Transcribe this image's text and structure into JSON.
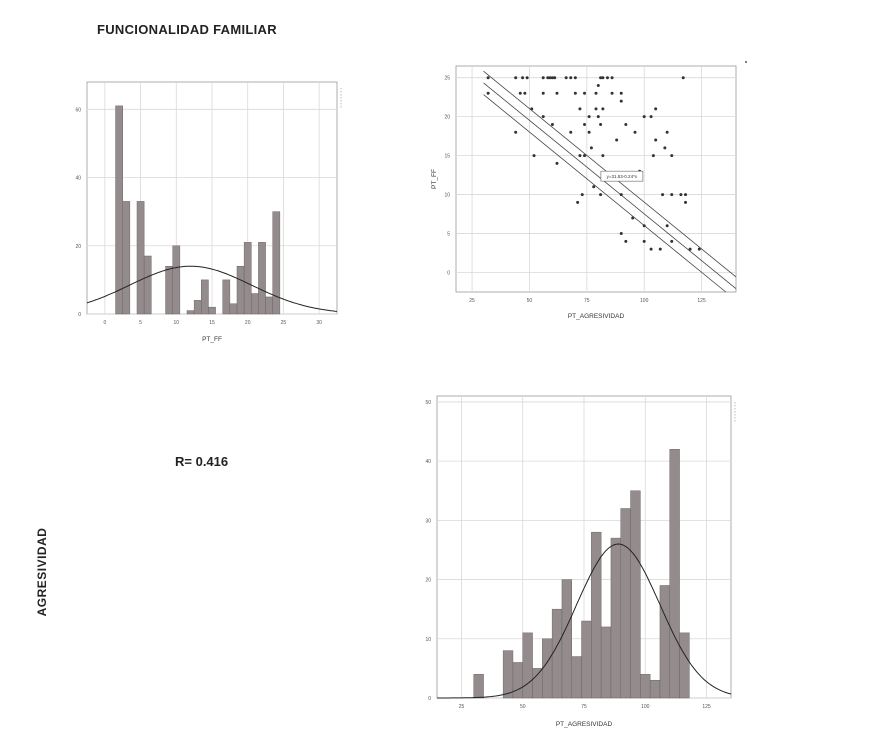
{
  "page": {
    "title": "FUNCIONALIDAD FAMILIAR",
    "r_label": "R= 0.416",
    "side_label": "AGRESIVIDAD"
  },
  "chart_data": [
    {
      "id": "hist-ff",
      "type": "bar",
      "xlabel": "PT_FF",
      "ylabel": "",
      "xlim": [
        -2.5,
        32.5
      ],
      "ylim": [
        0,
        68
      ],
      "xticks": [
        0,
        5,
        10,
        15,
        20,
        25,
        30
      ],
      "yticks": [
        0,
        20,
        40,
        60
      ],
      "bin_width": 1,
      "bins": [
        {
          "x": 2,
          "count": 61
        },
        {
          "x": 3,
          "count": 33
        },
        {
          "x": 5,
          "count": 33
        },
        {
          "x": 6,
          "count": 17
        },
        {
          "x": 9,
          "count": 14
        },
        {
          "x": 10,
          "count": 20
        },
        {
          "x": 12,
          "count": 1
        },
        {
          "x": 13,
          "count": 4
        },
        {
          "x": 14,
          "count": 10
        },
        {
          "x": 15,
          "count": 2
        },
        {
          "x": 17,
          "count": 10
        },
        {
          "x": 18,
          "count": 3
        },
        {
          "x": 19,
          "count": 14
        },
        {
          "x": 20,
          "count": 21
        },
        {
          "x": 21,
          "count": 6
        },
        {
          "x": 22,
          "count": 21
        },
        {
          "x": 23,
          "count": 5
        },
        {
          "x": 24,
          "count": 30
        }
      ],
      "normal_curve": {
        "mean": 12,
        "sd": 8.5,
        "peak": 14
      }
    },
    {
      "id": "scatter",
      "type": "scatter",
      "xlabel": "PT_AGRESIVIDAD",
      "ylabel": "PT_FF",
      "xlim": [
        18,
        140
      ],
      "ylim": [
        -2.5,
        26.5
      ],
      "xticks": [
        25,
        50,
        75,
        100,
        125
      ],
      "yticks": [
        0,
        5,
        10,
        15,
        20,
        25
      ],
      "fit_label": "y=31.53-0.24*x",
      "fit": {
        "intercept": 31.53,
        "slope": -0.24,
        "ci_offset": 1.5,
        "x_from": 30,
        "x_to": 125
      },
      "points": [
        [
          32,
          25
        ],
        [
          32,
          23
        ],
        [
          44,
          25
        ],
        [
          47,
          25
        ],
        [
          49,
          25
        ],
        [
          56,
          25
        ],
        [
          58,
          25
        ],
        [
          59,
          25
        ],
        [
          60,
          25
        ],
        [
          61,
          25
        ],
        [
          66,
          25
        ],
        [
          68,
          25
        ],
        [
          70,
          25
        ],
        [
          81,
          25
        ],
        [
          82,
          25
        ],
        [
          84,
          25
        ],
        [
          86,
          25
        ],
        [
          44,
          18
        ],
        [
          46,
          23
        ],
        [
          48,
          23
        ],
        [
          51,
          21
        ],
        [
          56,
          23
        ],
        [
          62,
          23
        ],
        [
          70,
          23
        ],
        [
          74,
          23
        ],
        [
          79,
          23
        ],
        [
          80,
          24
        ],
        [
          86,
          23
        ],
        [
          90,
          23
        ],
        [
          90,
          22
        ],
        [
          72,
          21
        ],
        [
          76,
          20
        ],
        [
          80,
          20
        ],
        [
          81,
          19
        ],
        [
          79,
          21
        ],
        [
          82,
          21
        ],
        [
          76,
          18
        ],
        [
          74,
          19
        ],
        [
          60,
          19
        ],
        [
          68,
          18
        ],
        [
          56,
          20
        ],
        [
          52,
          15
        ],
        [
          62,
          14
        ],
        [
          72,
          15
        ],
        [
          74,
          15
        ],
        [
          77,
          16
        ],
        [
          82,
          15
        ],
        [
          88,
          17
        ],
        [
          92,
          19
        ],
        [
          96,
          18
        ],
        [
          100,
          20
        ],
        [
          104,
          15
        ],
        [
          105,
          17
        ],
        [
          103,
          20
        ],
        [
          105,
          21
        ],
        [
          109,
          16
        ],
        [
          110,
          18
        ],
        [
          112,
          15
        ],
        [
          117,
          25
        ],
        [
          98,
          13
        ],
        [
          108,
          10
        ],
        [
          112,
          10
        ],
        [
          116,
          10
        ],
        [
          118,
          10
        ],
        [
          118,
          9
        ],
        [
          71,
          9
        ],
        [
          73,
          10
        ],
        [
          78,
          11
        ],
        [
          81,
          10
        ],
        [
          90,
          10
        ],
        [
          95,
          7
        ],
        [
          92,
          4
        ],
        [
          100,
          4
        ],
        [
          100,
          6
        ],
        [
          90,
          5
        ],
        [
          103,
          3
        ],
        [
          107,
          3
        ],
        [
          110,
          6
        ],
        [
          120,
          3
        ],
        [
          124,
          3
        ],
        [
          112,
          4
        ]
      ]
    },
    {
      "id": "hist-agresividad",
      "type": "bar",
      "xlabel": "PT_AGRESIVIDAD",
      "ylabel": "",
      "xlim": [
        15,
        135
      ],
      "ylim": [
        0,
        51
      ],
      "xticks": [
        25,
        50,
        75,
        100,
        125
      ],
      "yticks": [
        0,
        10,
        20,
        30,
        40,
        50
      ],
      "bin_width": 4,
      "bins": [
        {
          "x": 32,
          "count": 4
        },
        {
          "x": 44,
          "count": 8
        },
        {
          "x": 48,
          "count": 6
        },
        {
          "x": 52,
          "count": 11
        },
        {
          "x": 56,
          "count": 5
        },
        {
          "x": 60,
          "count": 10
        },
        {
          "x": 64,
          "count": 15
        },
        {
          "x": 68,
          "count": 20
        },
        {
          "x": 72,
          "count": 7
        },
        {
          "x": 76,
          "count": 13
        },
        {
          "x": 80,
          "count": 28
        },
        {
          "x": 84,
          "count": 12
        },
        {
          "x": 88,
          "count": 27
        },
        {
          "x": 92,
          "count": 32
        },
        {
          "x": 96,
          "count": 35
        },
        {
          "x": 100,
          "count": 4
        },
        {
          "x": 104,
          "count": 3
        },
        {
          "x": 108,
          "count": 19
        },
        {
          "x": 112,
          "count": 42
        },
        {
          "x": 116,
          "count": 11
        }
      ],
      "normal_curve": {
        "mean": 89,
        "sd": 17,
        "peak": 26
      }
    }
  ]
}
